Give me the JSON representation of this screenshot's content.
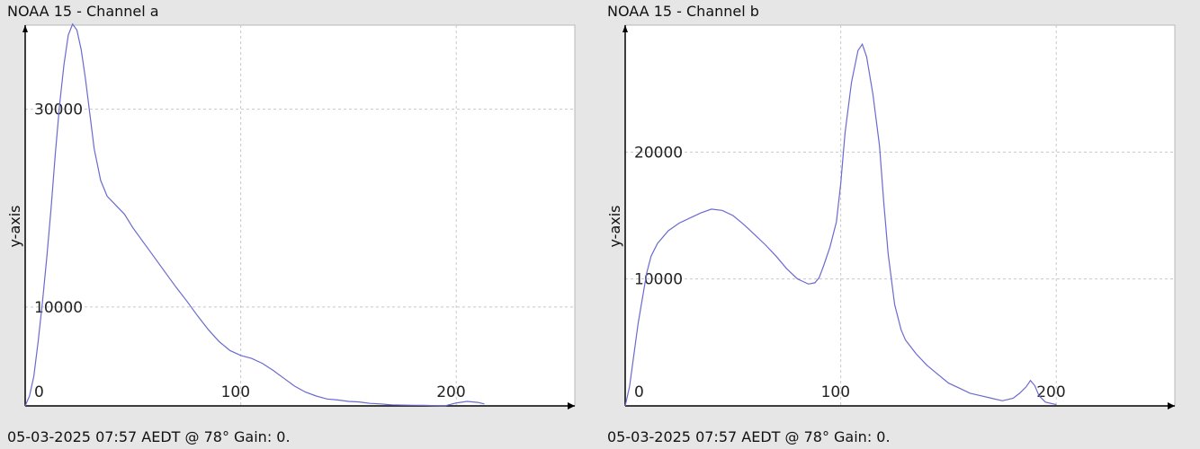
{
  "chart_data": [
    {
      "type": "line",
      "title": "NOAA 15 - Channel a",
      "footer": "05-03-2025 07:57 AEDT @ 78° Gain: 0.",
      "xlabel": "",
      "ylabel": "y-axis",
      "xlim": [
        0,
        255
      ],
      "ylim": [
        0,
        38500
      ],
      "xticks": [
        0,
        100,
        200
      ],
      "yticks": [
        10000,
        30000
      ],
      "grid": true,
      "line_color": "#6a6ad0",
      "series": [
        {
          "x": [
            0,
            2,
            4,
            6,
            8,
            10,
            12,
            14,
            16,
            18,
            20,
            22,
            24,
            26,
            28,
            30,
            32,
            35,
            38,
            42,
            46,
            50,
            55,
            60,
            65,
            70,
            75,
            80,
            85,
            90,
            95,
            100,
            105,
            110,
            115,
            120,
            125,
            130,
            135,
            140,
            145,
            150,
            155,
            160,
            165,
            170,
            175,
            180,
            185,
            190,
            195,
            200,
            205,
            210,
            213
          ],
          "y": [
            0,
            1000,
            3000,
            6500,
            10500,
            15000,
            20000,
            25500,
            30500,
            34500,
            37500,
            38600,
            38000,
            36000,
            33000,
            29500,
            26000,
            22800,
            21200,
            20300,
            19400,
            18000,
            16500,
            15000,
            13500,
            12000,
            10600,
            9100,
            7700,
            6500,
            5600,
            5100,
            4800,
            4300,
            3600,
            2800,
            2000,
            1400,
            1000,
            700,
            600,
            450,
            400,
            250,
            200,
            100,
            80,
            60,
            50,
            30,
            20,
            300,
            450,
            350,
            200
          ]
        }
      ]
    },
    {
      "type": "line",
      "title": "NOAA 15 - Channel b",
      "footer": "05-03-2025 07:57 AEDT @ 78° Gain: 0.",
      "xlabel": "",
      "ylabel": "y-axis",
      "xlim": [
        0,
        255
      ],
      "ylim": [
        0,
        30000
      ],
      "xticks": [
        0,
        100,
        200
      ],
      "yticks": [
        10000,
        20000
      ],
      "grid": true,
      "line_color": "#6a6ad0",
      "series": [
        {
          "x": [
            0,
            2,
            4,
            6,
            8,
            10,
            12,
            15,
            20,
            25,
            30,
            35,
            40,
            45,
            50,
            55,
            60,
            65,
            70,
            75,
            80,
            85,
            88,
            90,
            92,
            95,
            98,
            100,
            102,
            105,
            108,
            110,
            112,
            115,
            118,
            120,
            122,
            125,
            128,
            130,
            135,
            140,
            145,
            150,
            155,
            160,
            165,
            170,
            175,
            180,
            183,
            186,
            188,
            190,
            192,
            195,
            200
          ],
          "y": [
            0,
            1500,
            4000,
            6500,
            8500,
            10500,
            11800,
            12800,
            13800,
            14400,
            14800,
            15200,
            15500,
            15400,
            15000,
            14300,
            13500,
            12700,
            11800,
            10800,
            10000,
            9600,
            9700,
            10100,
            11000,
            12500,
            14500,
            17500,
            21500,
            25500,
            28000,
            28500,
            27500,
            24500,
            20500,
            16000,
            12000,
            8000,
            6000,
            5200,
            4100,
            3200,
            2500,
            1800,
            1400,
            1000,
            800,
            600,
            400,
            600,
            1000,
            1500,
            2000,
            1600,
            800,
            300,
            100
          ]
        }
      ]
    }
  ]
}
